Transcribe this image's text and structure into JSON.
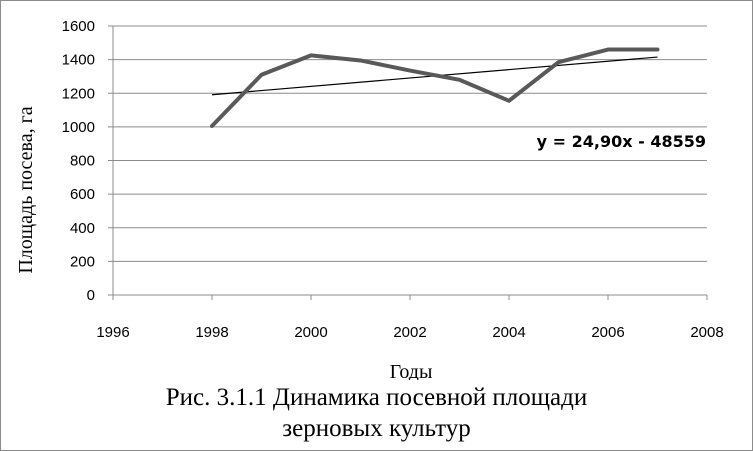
{
  "chart_data": {
    "type": "line",
    "title": "",
    "xlabel": "Годы",
    "ylabel": "Площадь посева, га",
    "xlim": [
      1996,
      2008
    ],
    "ylim": [
      0,
      1600
    ],
    "x_ticks": [
      1996,
      1998,
      2000,
      2002,
      2004,
      2006,
      2008
    ],
    "y_ticks": [
      0,
      200,
      400,
      600,
      800,
      1000,
      1200,
      1400,
      1600
    ],
    "grid": "horizontal",
    "series": [
      {
        "x": [
          1998,
          1999,
          2000,
          2001,
          2002,
          2003,
          2004,
          2005,
          2006,
          2007
        ],
        "values": [
          1005,
          1310,
          1425,
          1395,
          1335,
          1280,
          1155,
          1385,
          1460,
          1460
        ],
        "color": "#595959"
      }
    ],
    "trendline": {
      "equation": "y = 24,90x - 48559",
      "slope": 24.9,
      "intercept": -48559,
      "x_range": [
        1998,
        2007
      ],
      "color": "#000000"
    }
  },
  "caption": {
    "line1": "Рис. 3.1.1 Динамика посевной площади",
    "line2": "зерновых культур"
  }
}
